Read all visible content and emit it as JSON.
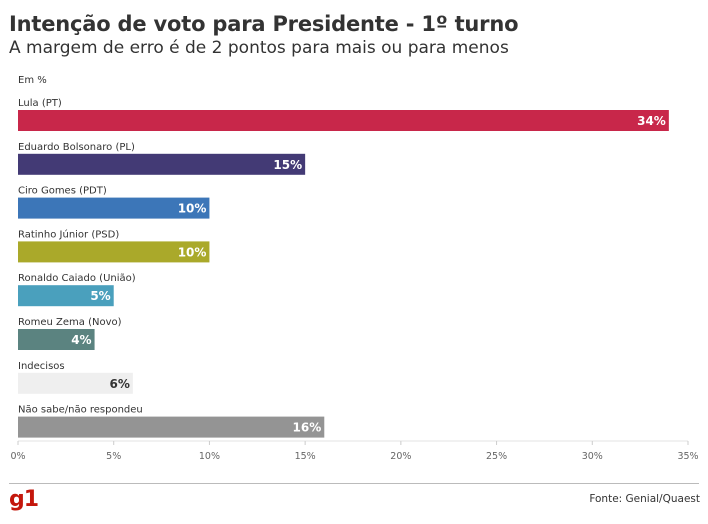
{
  "header": {
    "title": "Intenção de voto para Presidente - 1º turno",
    "subtitle": "A margem de erro é de 2 pontos para mais ou para menos",
    "unit": "Em %"
  },
  "footer": {
    "logo": "g1",
    "source": "Fonte: Genial/Quaest"
  },
  "chart_data": {
    "type": "bar",
    "orientation": "horizontal",
    "categories": [
      "Lula (PT)",
      "Eduardo Bolsonaro (PL)",
      "Ciro Gomes (PDT)",
      "Ratinho Júnior (PSD)",
      "Ronaldo Caiado (União)",
      "Romeu Zema (Novo)",
      "Indecisos",
      "Não sabe/não respondeu"
    ],
    "values": [
      34,
      15,
      10,
      10,
      5,
      4,
      6,
      16
    ],
    "value_labels": [
      "34%",
      "15%",
      "10%",
      "10%",
      "5%",
      "4%",
      "6%",
      "16%"
    ],
    "colors": [
      "#c8274a",
      "#433a75",
      "#3c76b8",
      "#aaa92a",
      "#4aa0bd",
      "#5b8380",
      "#efefef",
      "#949494"
    ],
    "label_colors": [
      "#ffffff",
      "#ffffff",
      "#ffffff",
      "#ffffff",
      "#ffffff",
      "#ffffff",
      "#333333",
      "#ffffff"
    ],
    "xlim": [
      0,
      35
    ],
    "xticks": [
      0,
      5,
      10,
      15,
      20,
      25,
      30,
      35
    ],
    "xtick_labels": [
      "0%",
      "5%",
      "10%",
      "15%",
      "20%",
      "25%",
      "30%",
      "35%"
    ],
    "grid": false
  }
}
